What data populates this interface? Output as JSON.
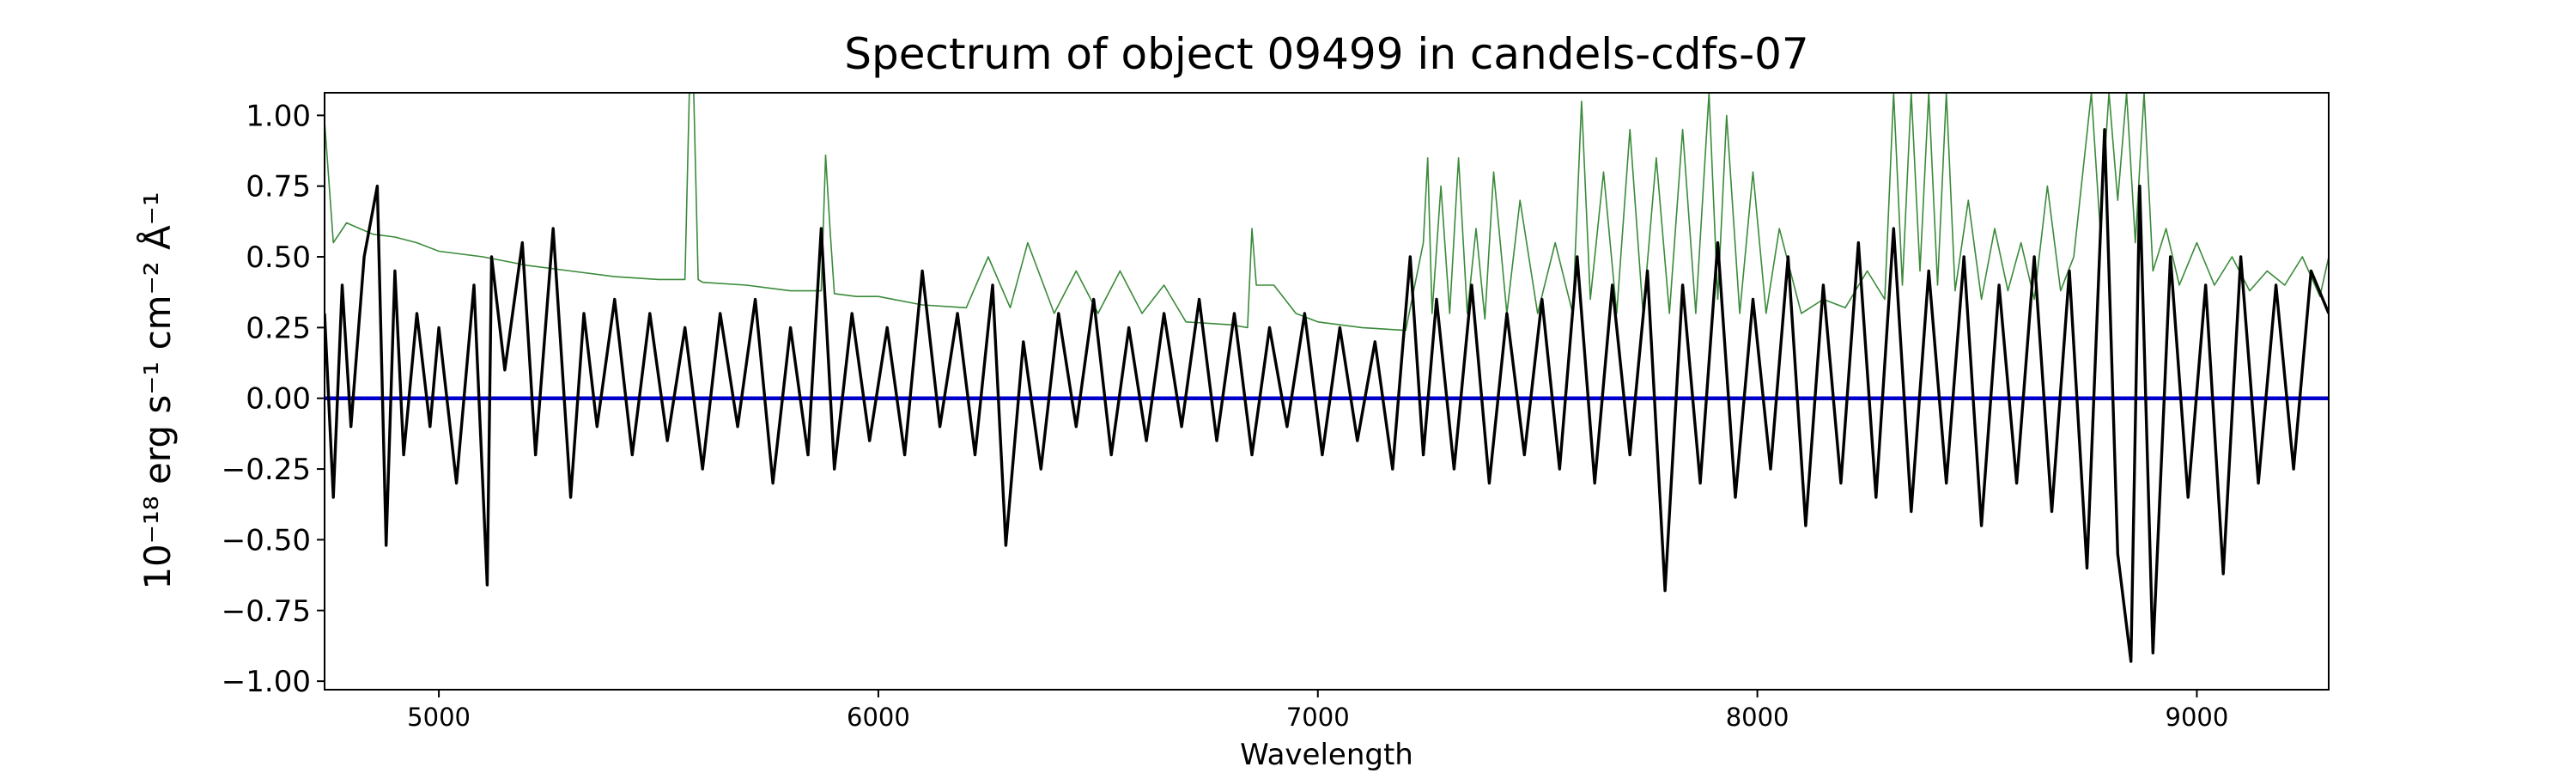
{
  "chart_data": {
    "type": "line",
    "title": "Spectrum of object 09499 in candels-cdfs-07",
    "xlabel": "Wavelength",
    "ylabel": "10⁻¹⁸ erg s⁻¹ cm⁻² Å⁻¹",
    "xlim": [
      4740,
      9300
    ],
    "ylim": [
      -1.03,
      1.08
    ],
    "xticks": [
      5000,
      6000,
      7000,
      8000,
      9000
    ],
    "xtick_labels": [
      "5000",
      "6000",
      "7000",
      "8000",
      "9000"
    ],
    "yticks": [
      -1.0,
      -0.75,
      -0.5,
      -0.25,
      0.0,
      0.25,
      0.5,
      0.75,
      1.0
    ],
    "ytick_labels": [
      "−1.00",
      "−0.75",
      "−0.50",
      "−0.25",
      "0.00",
      "0.25",
      "0.50",
      "0.75",
      "1.00"
    ],
    "grid": false,
    "legend": "none",
    "series": [
      {
        "role": "flux",
        "color": "#000000",
        "x": [
          4740,
          4760,
          4780,
          4800,
          4830,
          4860,
          4880,
          4900,
          4920,
          4950,
          4980,
          5000,
          5040,
          5080,
          5110,
          5120,
          5150,
          5190,
          5220,
          5260,
          5300,
          5330,
          5360,
          5400,
          5440,
          5480,
          5520,
          5560,
          5600,
          5640,
          5680,
          5720,
          5760,
          5800,
          5840,
          5870,
          5900,
          5940,
          5980,
          6020,
          6060,
          6100,
          6140,
          6180,
          6220,
          6260,
          6290,
          6330,
          6370,
          6410,
          6450,
          6490,
          6530,
          6570,
          6610,
          6650,
          6690,
          6730,
          6770,
          6810,
          6850,
          6890,
          6930,
          6970,
          7010,
          7050,
          7090,
          7130,
          7170,
          7210,
          7240,
          7270,
          7310,
          7350,
          7390,
          7430,
          7470,
          7510,
          7550,
          7590,
          7630,
          7670,
          7710,
          7750,
          7790,
          7830,
          7870,
          7910,
          7950,
          7990,
          8030,
          8070,
          8110,
          8150,
          8190,
          8230,
          8270,
          8310,
          8350,
          8390,
          8430,
          8470,
          8510,
          8550,
          8590,
          8630,
          8670,
          8710,
          8750,
          8790,
          8820,
          8850,
          8870,
          8900,
          8940,
          8980,
          9020,
          9060,
          9100,
          9140,
          9180,
          9220,
          9260,
          9300
        ],
        "y": [
          0.3,
          -0.35,
          0.4,
          -0.1,
          0.5,
          0.75,
          -0.52,
          0.45,
          -0.2,
          0.3,
          -0.1,
          0.25,
          -0.3,
          0.4,
          -0.66,
          0.5,
          0.1,
          0.55,
          -0.2,
          0.6,
          -0.35,
          0.3,
          -0.1,
          0.35,
          -0.2,
          0.3,
          -0.15,
          0.25,
          -0.25,
          0.3,
          -0.1,
          0.35,
          -0.3,
          0.25,
          -0.2,
          0.6,
          -0.25,
          0.3,
          -0.15,
          0.25,
          -0.2,
          0.45,
          -0.1,
          0.3,
          -0.2,
          0.4,
          -0.52,
          0.2,
          -0.25,
          0.3,
          -0.1,
          0.35,
          -0.2,
          0.25,
          -0.15,
          0.3,
          -0.1,
          0.35,
          -0.15,
          0.3,
          -0.2,
          0.25,
          -0.1,
          0.3,
          -0.2,
          0.25,
          -0.15,
          0.2,
          -0.25,
          0.5,
          -0.2,
          0.35,
          -0.25,
          0.4,
          -0.3,
          0.3,
          -0.2,
          0.35,
          -0.25,
          0.5,
          -0.3,
          0.4,
          -0.2,
          0.45,
          -0.68,
          0.4,
          -0.3,
          0.55,
          -0.35,
          0.35,
          -0.25,
          0.5,
          -0.45,
          0.4,
          -0.3,
          0.55,
          -0.35,
          0.6,
          -0.4,
          0.45,
          -0.3,
          0.5,
          -0.45,
          0.4,
          -0.3,
          0.5,
          -0.4,
          0.45,
          -0.6,
          0.95,
          -0.55,
          -0.93,
          0.75,
          -0.9,
          0.5,
          -0.35,
          0.4,
          -0.62,
          0.5,
          -0.3,
          0.4,
          -0.25,
          0.45,
          0.3
        ]
      },
      {
        "role": "error",
        "color": "#3a8a3a",
        "x": [
          4740,
          4760,
          4790,
          4820,
          4850,
          4900,
          4950,
          5000,
          5100,
          5200,
          5300,
          5400,
          5500,
          5560,
          5570,
          5580,
          5590,
          5600,
          5700,
          5800,
          5870,
          5880,
          5890,
          5900,
          5950,
          6000,
          6100,
          6200,
          6250,
          6300,
          6340,
          6400,
          6450,
          6500,
          6550,
          6600,
          6650,
          6700,
          6800,
          6840,
          6850,
          6860,
          6900,
          6950,
          7000,
          7100,
          7200,
          7240,
          7250,
          7260,
          7280,
          7300,
          7320,
          7340,
          7360,
          7380,
          7400,
          7430,
          7460,
          7500,
          7540,
          7580,
          7600,
          7620,
          7650,
          7680,
          7710,
          7740,
          7770,
          7800,
          7830,
          7860,
          7890,
          7910,
          7930,
          7960,
          7990,
          8020,
          8050,
          8100,
          8150,
          8200,
          8250,
          8290,
          8310,
          8330,
          8350,
          8370,
          8390,
          8410,
          8430,
          8450,
          8480,
          8510,
          8540,
          8570,
          8600,
          8630,
          8660,
          8690,
          8720,
          8760,
          8780,
          8800,
          8820,
          8840,
          8860,
          8880,
          8900,
          8930,
          8960,
          9000,
          9040,
          9080,
          9120,
          9160,
          9200,
          9240,
          9280,
          9300
        ],
        "y": [
          0.98,
          0.55,
          0.62,
          0.6,
          0.58,
          0.57,
          0.55,
          0.52,
          0.5,
          0.47,
          0.45,
          0.43,
          0.42,
          0.42,
          1.08,
          1.08,
          0.42,
          0.41,
          0.4,
          0.38,
          0.38,
          0.86,
          0.6,
          0.37,
          0.36,
          0.36,
          0.33,
          0.32,
          0.5,
          0.32,
          0.55,
          0.3,
          0.45,
          0.3,
          0.45,
          0.3,
          0.4,
          0.27,
          0.26,
          0.25,
          0.6,
          0.4,
          0.4,
          0.3,
          0.27,
          0.25,
          0.24,
          0.55,
          0.85,
          0.3,
          0.75,
          0.3,
          0.85,
          0.3,
          0.6,
          0.28,
          0.8,
          0.3,
          0.7,
          0.3,
          0.55,
          0.3,
          1.05,
          0.35,
          0.8,
          0.3,
          0.95,
          0.3,
          0.85,
          0.3,
          0.95,
          0.3,
          1.08,
          0.35,
          1.0,
          0.3,
          0.8,
          0.3,
          0.6,
          0.3,
          0.35,
          0.32,
          0.45,
          0.35,
          1.08,
          0.4,
          1.08,
          0.45,
          1.08,
          0.4,
          1.08,
          0.38,
          0.7,
          0.35,
          0.6,
          0.38,
          0.55,
          0.35,
          0.75,
          0.38,
          0.5,
          1.08,
          0.6,
          1.08,
          0.7,
          1.08,
          0.55,
          1.08,
          0.45,
          0.6,
          0.4,
          0.55,
          0.4,
          0.5,
          0.38,
          0.45,
          0.4,
          0.5,
          0.36,
          0.5
        ]
      },
      {
        "role": "zero-line",
        "color": "#0000cc",
        "x": [
          4740,
          9300
        ],
        "y": [
          0.0,
          0.0
        ]
      }
    ]
  }
}
